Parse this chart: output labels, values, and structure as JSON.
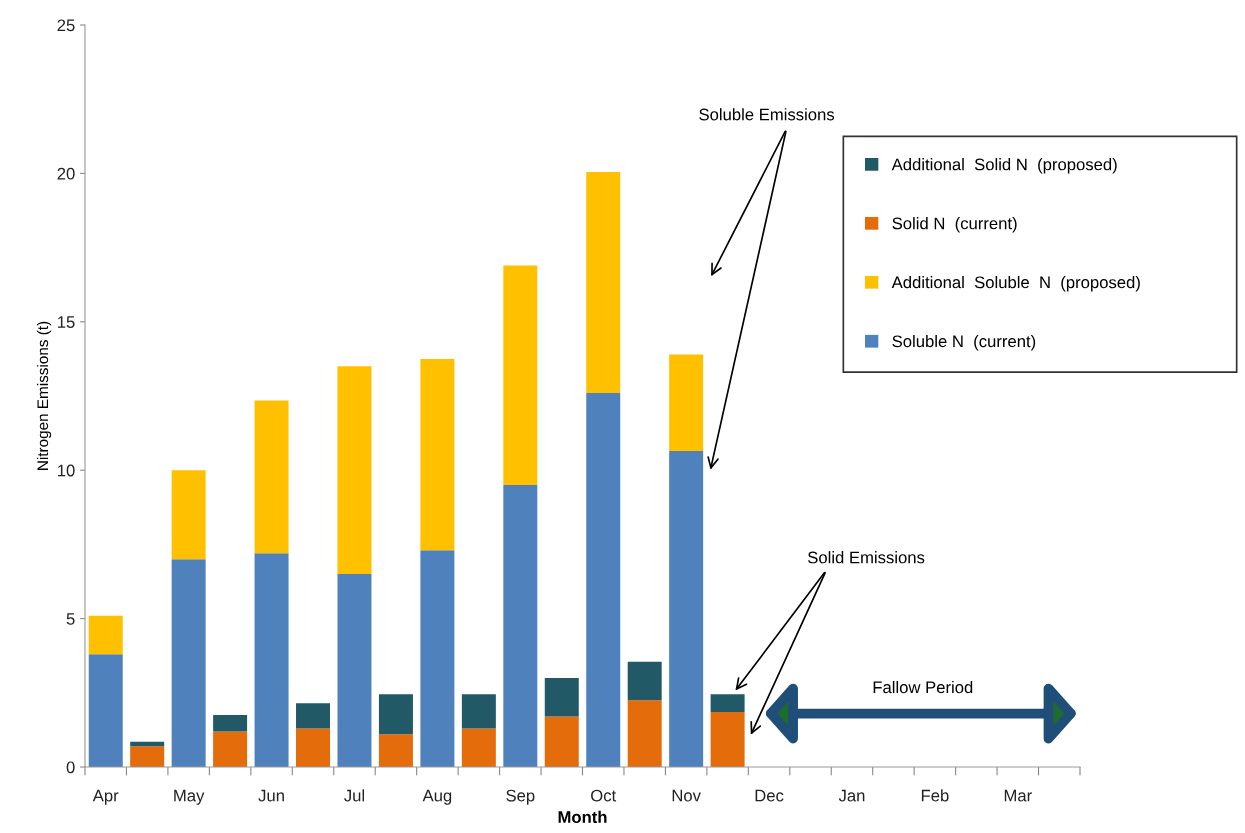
{
  "chart_data": {
    "type": "bar",
    "stacked": true,
    "xlabel": "Month",
    "ylabel": "Nitrogen Emissions (t)",
    "categories": [
      "Apr",
      null,
      "May",
      null,
      "Jun",
      null,
      "Jul",
      null,
      "Aug",
      null,
      "Sep",
      null,
      "Oct",
      null,
      "Nov",
      null,
      "Dec",
      null,
      "Jan",
      null,
      "Feb",
      null,
      "Mar",
      null
    ],
    "series": [
      {
        "name": "Soluble N  (current)",
        "color": "#4f81bd",
        "values": [
          3.8,
          null,
          7.0,
          null,
          7.2,
          null,
          6.5,
          null,
          7.3,
          null,
          9.5,
          null,
          12.6,
          null,
          10.65,
          null,
          null,
          null,
          null,
          null,
          null,
          null,
          null,
          null
        ]
      },
      {
        "name": "Additional  Soluble  N  (proposed)",
        "color": "#ffc000",
        "values": [
          1.3,
          null,
          3.0,
          null,
          5.15,
          null,
          7.0,
          null,
          6.45,
          null,
          7.4,
          null,
          7.45,
          null,
          3.25,
          null,
          null,
          null,
          null,
          null,
          null,
          null,
          null,
          null
        ]
      },
      {
        "name": "Solid N  (current)",
        "color": "#e46c0a",
        "values": [
          null,
          0.7,
          null,
          1.2,
          null,
          1.3,
          null,
          1.1,
          null,
          1.3,
          null,
          1.7,
          null,
          2.25,
          null,
          1.85,
          null,
          null,
          null,
          null,
          null,
          null,
          null,
          null
        ]
      },
      {
        "name": "Additional  Solid N  (proposed)",
        "color": "#215967",
        "values": [
          null,
          0.15,
          null,
          0.55,
          null,
          0.85,
          null,
          1.35,
          null,
          1.15,
          null,
          1.3,
          null,
          1.3,
          null,
          0.6,
          null,
          null,
          null,
          null,
          null,
          null,
          null,
          null
        ]
      }
    ],
    "ylim": [
      0,
      25
    ],
    "yticks": [
      0,
      5,
      10,
      15,
      20,
      25
    ],
    "grid": false,
    "legend": "top right",
    "annotations": [
      "Soluble Emissions",
      "Solid Emissions",
      "Fallow Period"
    ]
  }
}
